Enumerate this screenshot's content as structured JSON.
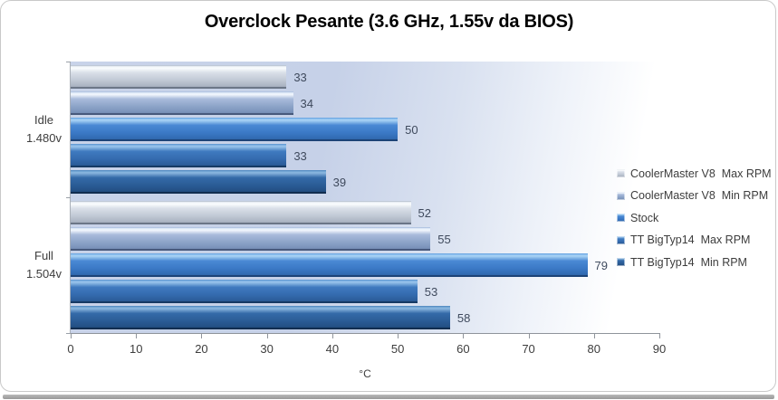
{
  "chart_data": {
    "type": "bar",
    "orientation": "horizontal",
    "title": "Overclock Pesante (3.6 GHz, 1.55v da BIOS)",
    "xlabel": "°C",
    "xlim": [
      0,
      90
    ],
    "xticks": [
      0,
      10,
      20,
      30,
      40,
      50,
      60,
      70,
      80,
      90
    ],
    "grid": false,
    "data_labels": true,
    "legend_position": "right",
    "categories": [
      {
        "line1": "Idle",
        "line2": "1.480v"
      },
      {
        "line1": "Full",
        "line2": "1.504v"
      }
    ],
    "series": [
      {
        "name": "CoolerMaster V8  Max RPM",
        "color": "#cdd5e0",
        "values": [
          33,
          52
        ]
      },
      {
        "name": "CoolerMaster V8  Min RPM",
        "color": "#8fa6cb",
        "values": [
          34,
          55
        ]
      },
      {
        "name": "Stock",
        "color": "#3f7dc9",
        "values": [
          50,
          79
        ]
      },
      {
        "name": "TT BigTyp14  Max RPM",
        "color": "#376dad",
        "values": [
          33,
          53
        ]
      },
      {
        "name": "TT BigTyp14  Min RPM",
        "color": "#2d5c95",
        "values": [
          39,
          58
        ]
      }
    ]
  }
}
